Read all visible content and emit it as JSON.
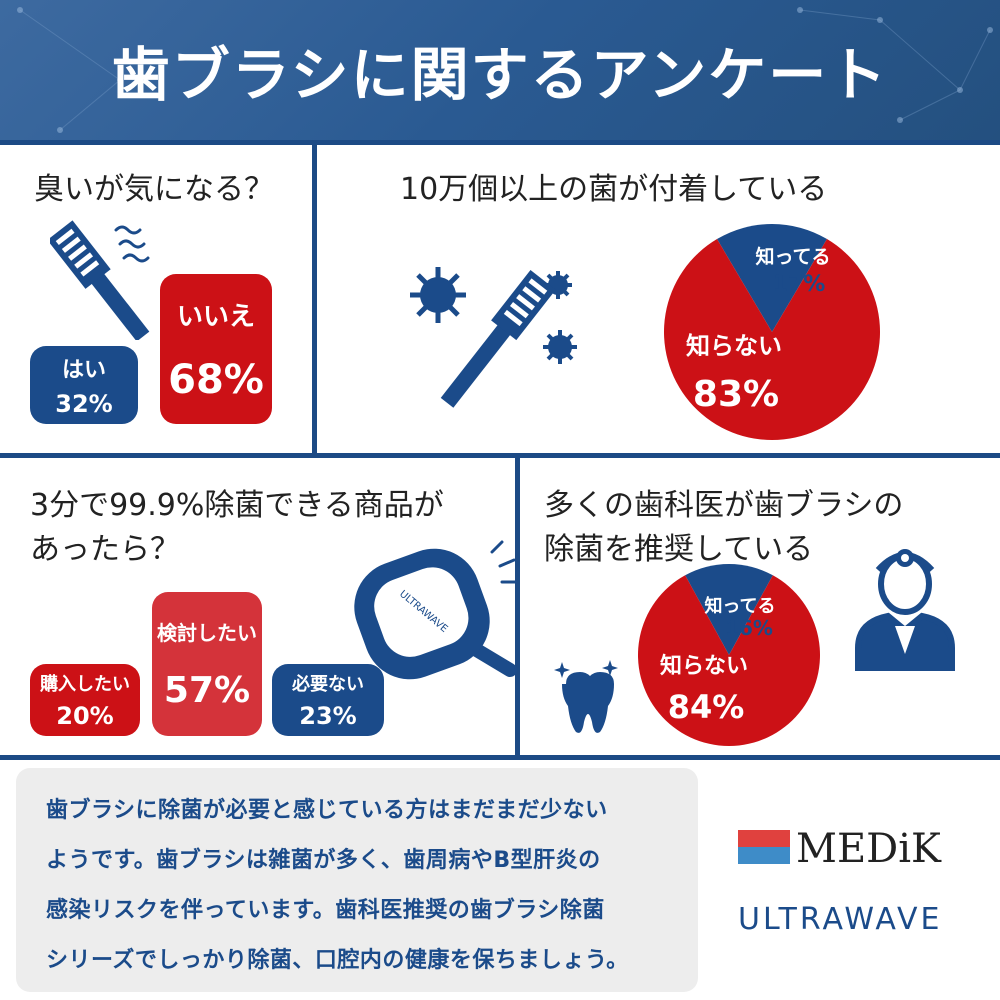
{
  "header": {
    "title": "歯ブラシに関するアンケート"
  },
  "section1": {
    "question": "臭いが気になる？",
    "yes": {
      "label": "はい",
      "value": "32%"
    },
    "no": {
      "label": "いいえ",
      "value": "68%"
    }
  },
  "section2": {
    "question": "10万個以上の菌が付着している",
    "know": {
      "label": "知ってる",
      "value": "17%"
    },
    "dont_know": {
      "label": "知らない",
      "value": "83%"
    }
  },
  "section3": {
    "question_line1": "3分で99.9%除菌できる商品が",
    "question_line2": "あったら？",
    "buy": {
      "label": "購入したい",
      "value": "20%"
    },
    "consider": {
      "label": "検討したい",
      "value": "57%"
    },
    "unneeded": {
      "label": "必要ない",
      "value": "23%"
    },
    "device_text": "ULTRAWAVE"
  },
  "section4": {
    "question_line1": "多くの歯科医が歯ブラシの",
    "question_line2": "除菌を推奨している",
    "know": {
      "label": "知ってる",
      "value": "16%"
    },
    "dont_know": {
      "label": "知らない",
      "value": "84%"
    }
  },
  "summary": {
    "lines": [
      "歯ブラシに除菌が必要と感じている方はまだまだ少ない",
      "ようです。歯ブラシは雑菌が多く、歯周病やB型肝炎の",
      "感染リスクを伴っています。歯科医推奨の歯ブラシ除菌",
      "シリーズでしっかり除菌、口腔内の健康を保ちましょう。"
    ]
  },
  "brand": {
    "medik": "MEDiK",
    "ultrawave": "ULTRAWAVE"
  },
  "colors": {
    "navy": "#1b4b8a",
    "red": "#cc1116",
    "header": "#2a5a92"
  },
  "chart_data": [
    {
      "type": "pie",
      "categories": [
        "知ってる",
        "知らない"
      ],
      "values": [
        17,
        83
      ]
    },
    {
      "type": "pie",
      "categories": [
        "知ってる",
        "知らない"
      ],
      "values": [
        16,
        84
      ]
    }
  ]
}
